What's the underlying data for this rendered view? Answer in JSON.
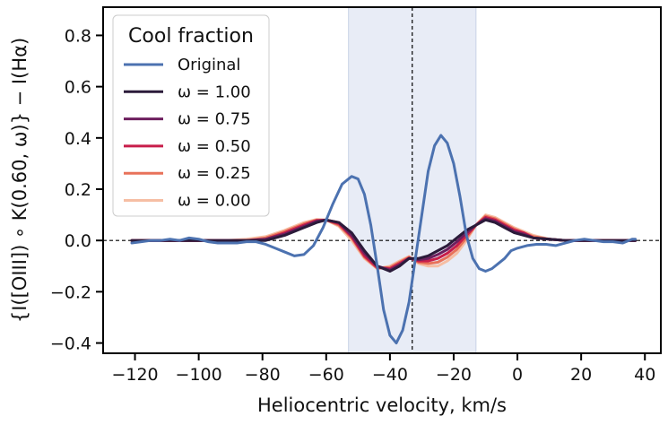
{
  "chart_data": {
    "type": "line",
    "xlabel": "Heliocentric velocity, km/s",
    "ylabel": "{I([OIII]) ∘ K(0.60, ω)} − I(Hα)",
    "xlim": [
      -130,
      45
    ],
    "ylim": [
      -0.44,
      0.91
    ],
    "xticks": [
      -120,
      -100,
      -80,
      -60,
      -40,
      -20,
      0,
      20,
      40
    ],
    "yticks": [
      -0.4,
      -0.2,
      0.0,
      0.2,
      0.4,
      0.6,
      0.8
    ],
    "ytick_labels": [
      "−0.4",
      "−0.2",
      "0.0",
      "0.2",
      "0.4",
      "0.6",
      "0.8"
    ],
    "xtick_labels": [
      "−120",
      "−100",
      "−80",
      "−60",
      "−40",
      "−20",
      "0",
      "20",
      "40"
    ],
    "shaded_band": {
      "x0": -53,
      "x1": -13,
      "color": "#e8ecf6"
    },
    "vline": {
      "x": -33
    },
    "hline": {
      "y": 0
    },
    "legend": {
      "title": "Cool fraction",
      "placement": "top-left"
    },
    "series": [
      {
        "name": "Original",
        "color": "#4c72b0",
        "width": 3,
        "x": [
          -121,
          -118,
          -115,
          -112,
          -109,
          -106,
          -103,
          -100,
          -97,
          -94,
          -91,
          -88,
          -85,
          -82,
          -79,
          -76,
          -73,
          -70,
          -67,
          -64,
          -61,
          -58,
          -55,
          -52,
          -50,
          -48,
          -46,
          -44,
          -42,
          -40,
          -38,
          -36,
          -34,
          -32,
          -30,
          -28,
          -26,
          -24,
          -22,
          -20,
          -18,
          -16,
          -14,
          -12,
          -10,
          -8,
          -6,
          -4,
          -2,
          0,
          3,
          6,
          9,
          12,
          15,
          18,
          21,
          24,
          27,
          30,
          33,
          36,
          37
        ],
        "y": [
          -0.01,
          -0.005,
          0.0,
          0.0,
          0.005,
          0.0,
          0.01,
          0.005,
          -0.005,
          -0.01,
          -0.01,
          -0.01,
          -0.005,
          -0.005,
          -0.015,
          -0.03,
          -0.045,
          -0.06,
          -0.055,
          -0.02,
          0.05,
          0.14,
          0.22,
          0.25,
          0.24,
          0.18,
          0.06,
          -0.1,
          -0.27,
          -0.37,
          -0.4,
          -0.35,
          -0.24,
          -0.07,
          0.1,
          0.27,
          0.37,
          0.41,
          0.38,
          0.3,
          0.17,
          0.02,
          -0.07,
          -0.11,
          -0.12,
          -0.11,
          -0.09,
          -0.07,
          -0.04,
          -0.03,
          -0.02,
          -0.015,
          -0.015,
          -0.02,
          -0.01,
          0.0,
          0.005,
          0.0,
          -0.005,
          -0.005,
          -0.01,
          0.005,
          0.005
        ]
      },
      {
        "name": "ω = 1.00",
        "color": "#2b1b3a",
        "width": 3,
        "x": [
          -121,
          -115,
          -109,
          -103,
          -97,
          -91,
          -85,
          -79,
          -73,
          -67,
          -63,
          -60,
          -56,
          -52,
          -48,
          -44,
          -40,
          -37,
          -34,
          -31,
          -28,
          -25,
          -22,
          -19,
          -16,
          -13,
          -10,
          -7,
          -4,
          -1,
          2,
          5,
          10,
          15,
          20,
          25,
          30,
          35,
          37
        ],
        "y": [
          0.0,
          0.0,
          0.0,
          0.0,
          0.0,
          0.0,
          0.0,
          0.0,
          0.02,
          0.05,
          0.07,
          0.08,
          0.07,
          0.03,
          -0.04,
          -0.1,
          -0.12,
          -0.1,
          -0.07,
          -0.07,
          -0.06,
          -0.04,
          -0.02,
          0.01,
          0.04,
          0.06,
          0.08,
          0.07,
          0.05,
          0.03,
          0.02,
          0.01,
          0.005,
          0.0,
          0.0,
          0.0,
          0.0,
          0.0,
          0.0
        ]
      },
      {
        "name": "ω = 0.75",
        "color": "#6d1f5e",
        "width": 3,
        "x": [
          -121,
          -115,
          -109,
          -103,
          -97,
          -91,
          -85,
          -79,
          -73,
          -67,
          -63,
          -60,
          -56,
          -52,
          -48,
          -44,
          -40,
          -37,
          -34,
          -31,
          -28,
          -25,
          -22,
          -19,
          -16,
          -13,
          -10,
          -7,
          -4,
          -1,
          2,
          5,
          10,
          15,
          20,
          25,
          30,
          35,
          37
        ],
        "y": [
          0.0,
          0.0,
          0.0,
          0.0,
          0.0,
          0.0,
          0.0,
          0.005,
          0.025,
          0.055,
          0.075,
          0.08,
          0.07,
          0.02,
          -0.05,
          -0.1,
          -0.115,
          -0.095,
          -0.07,
          -0.075,
          -0.07,
          -0.055,
          -0.035,
          -0.005,
          0.03,
          0.06,
          0.085,
          0.075,
          0.055,
          0.035,
          0.025,
          0.01,
          0.005,
          0.0,
          0.0,
          0.0,
          0.0,
          0.0,
          0.0
        ]
      },
      {
        "name": "ω = 0.50",
        "color": "#c81e4a",
        "width": 3,
        "x": [
          -121,
          -115,
          -109,
          -103,
          -97,
          -91,
          -85,
          -79,
          -73,
          -67,
          -63,
          -60,
          -56,
          -52,
          -48,
          -44,
          -40,
          -37,
          -34,
          -31,
          -28,
          -25,
          -22,
          -19,
          -16,
          -13,
          -10,
          -7,
          -4,
          -1,
          2,
          5,
          10,
          15,
          20,
          25,
          30,
          35,
          37
        ],
        "y": [
          0.0,
          0.0,
          0.0,
          0.0,
          0.0,
          0.0,
          0.0,
          0.005,
          0.03,
          0.06,
          0.078,
          0.08,
          0.065,
          0.015,
          -0.06,
          -0.105,
          -0.11,
          -0.09,
          -0.068,
          -0.08,
          -0.08,
          -0.07,
          -0.05,
          -0.02,
          0.02,
          0.06,
          0.09,
          0.08,
          0.06,
          0.04,
          0.03,
          0.01,
          0.005,
          0.0,
          0.0,
          0.0,
          0.0,
          0.0,
          0.0
        ]
      },
      {
        "name": "ω = 0.25",
        "color": "#e8725a",
        "width": 3,
        "x": [
          -121,
          -115,
          -109,
          -103,
          -97,
          -91,
          -85,
          -79,
          -73,
          -67,
          -63,
          -60,
          -56,
          -52,
          -48,
          -44,
          -40,
          -37,
          -34,
          -31,
          -28,
          -25,
          -22,
          -19,
          -16,
          -13,
          -10,
          -7,
          -4,
          -1,
          2,
          5,
          10,
          15,
          20,
          25,
          30,
          35,
          37
        ],
        "y": [
          0.0,
          0.0,
          0.0,
          0.0,
          0.0,
          0.0,
          0.0,
          0.01,
          0.035,
          0.065,
          0.08,
          0.08,
          0.06,
          0.01,
          -0.065,
          -0.108,
          -0.105,
          -0.085,
          -0.065,
          -0.085,
          -0.09,
          -0.085,
          -0.065,
          -0.035,
          0.01,
          0.06,
          0.095,
          0.085,
          0.065,
          0.045,
          0.03,
          0.015,
          0.005,
          0.0,
          0.0,
          0.0,
          0.0,
          0.0,
          0.0
        ]
      },
      {
        "name": "ω = 0.00",
        "color": "#f6bea4",
        "width": 3,
        "x": [
          -121,
          -115,
          -109,
          -103,
          -97,
          -91,
          -85,
          -79,
          -73,
          -67,
          -63,
          -60,
          -56,
          -52,
          -48,
          -44,
          -40,
          -37,
          -34,
          -31,
          -28,
          -25,
          -22,
          -19,
          -16,
          -13,
          -10,
          -7,
          -4,
          -1,
          2,
          5,
          10,
          15,
          20,
          25,
          30,
          35,
          37
        ],
        "y": [
          0.0,
          0.0,
          0.0,
          0.0,
          0.0,
          0.0,
          0.005,
          0.015,
          0.04,
          0.07,
          0.082,
          0.08,
          0.055,
          0.0,
          -0.07,
          -0.11,
          -0.1,
          -0.08,
          -0.062,
          -0.09,
          -0.1,
          -0.1,
          -0.08,
          -0.05,
          0.0,
          0.06,
          0.1,
          0.09,
          0.07,
          0.05,
          0.035,
          0.02,
          0.005,
          0.0,
          0.0,
          0.0,
          0.0,
          0.0,
          0.0
        ]
      }
    ]
  }
}
